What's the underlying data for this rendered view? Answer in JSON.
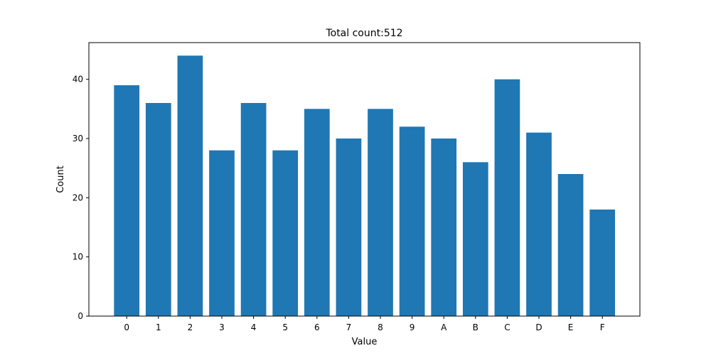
{
  "chart_data": {
    "type": "bar",
    "title": "Total count:512",
    "xlabel": "Value",
    "ylabel": "Count",
    "categories": [
      "0",
      "1",
      "2",
      "3",
      "4",
      "5",
      "6",
      "7",
      "8",
      "9",
      "A",
      "B",
      "C",
      "D",
      "E",
      "F"
    ],
    "values": [
      39,
      36,
      44,
      28,
      36,
      28,
      35,
      30,
      35,
      32,
      30,
      26,
      40,
      31,
      24,
      18
    ],
    "ylim": [
      0,
      46.2
    ],
    "yticks": [
      0,
      10,
      20,
      30,
      40
    ],
    "grid": false,
    "bar_color": "#1f77b4",
    "axis_color": "#000000",
    "background": "#ffffff"
  }
}
